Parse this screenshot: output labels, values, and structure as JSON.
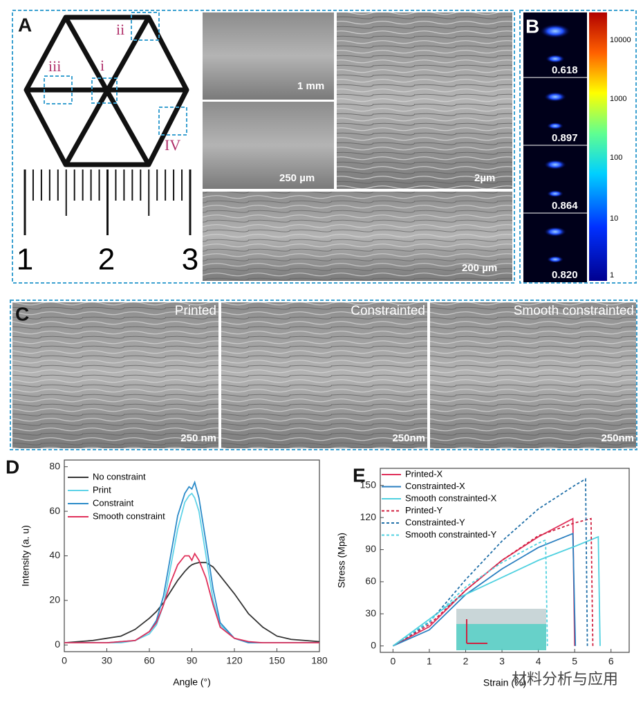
{
  "panel_a": {
    "label": "A",
    "regions": [
      "i",
      "ii",
      "iii",
      "IV"
    ],
    "ruler": [
      "1",
      "2",
      "3"
    ],
    "scale_bars": [
      "1 mm",
      "250 µm",
      "2µm",
      "200 µm"
    ]
  },
  "panel_b": {
    "label": "B",
    "orientation_values": [
      "0.618",
      "0.897",
      "0.864",
      "0.820"
    ],
    "colorbar_ticks": [
      "10000",
      "1000",
      "100",
      "10",
      "1"
    ]
  },
  "panel_c": {
    "label": "C",
    "images": [
      {
        "title": "Printed",
        "scale_bar": "250 nm"
      },
      {
        "title": "Constrainted",
        "scale_bar": "250nm"
      },
      {
        "title": "Smooth constrainted",
        "scale_bar": "250nm"
      }
    ]
  },
  "chart_data": [
    {
      "type": "line",
      "label": "D",
      "x_label": "Angle (°)",
      "y_label": "Intensity (a. u)",
      "legend": "upper left",
      "x": [
        0,
        10,
        20,
        30,
        40,
        50,
        60,
        65,
        70,
        75,
        80,
        85,
        88,
        90,
        92,
        95,
        100,
        105,
        110,
        120,
        130,
        140,
        150,
        160,
        170,
        180
      ],
      "series": [
        {
          "name": "No constraint",
          "color": "#333333",
          "values": [
            1,
            1.5,
            2,
            3,
            4,
            7,
            12,
            15,
            19,
            24,
            29,
            33,
            35,
            36,
            36.5,
            37,
            37,
            35,
            31,
            23,
            14,
            8,
            4,
            2.5,
            2,
            1.5
          ]
        },
        {
          "name": "Print",
          "color": "#5fd3e8",
          "values": [
            1,
            1,
            1,
            1,
            1,
            2,
            5,
            9,
            18,
            35,
            52,
            64,
            67,
            68,
            66,
            60,
            40,
            20,
            9,
            3,
            1,
            1,
            1,
            1,
            1,
            1
          ]
        },
        {
          "name": "Constraint",
          "color": "#2a8ac8",
          "values": [
            1,
            1,
            1,
            1,
            1.5,
            2,
            6,
            11,
            22,
            40,
            58,
            68,
            71,
            70,
            73,
            66,
            46,
            25,
            10,
            3,
            1,
            1,
            1,
            1,
            1,
            1
          ]
        },
        {
          "name": "Smooth constraint",
          "color": "#e0305a",
          "values": [
            1,
            1,
            1,
            1,
            1.5,
            2,
            6,
            10,
            18,
            28,
            36,
            40,
            40,
            38,
            41,
            38,
            30,
            18,
            8,
            3,
            1.5,
            1,
            1,
            1,
            1,
            1
          ]
        }
      ],
      "xlim": [
        0,
        180
      ],
      "ylim": [
        -3,
        83
      ],
      "xticks": [
        0,
        30,
        60,
        90,
        120,
        150,
        180
      ],
      "yticks": [
        0,
        20,
        40,
        60,
        80
      ]
    },
    {
      "type": "line",
      "label": "E",
      "x_label": "Strain (%)",
      "y_label": "Stress (Mpa)",
      "legend": "upper left",
      "series": [
        {
          "name": "Printed-X",
          "color": "#e0305a",
          "dashed": false,
          "x": [
            0,
            1,
            2,
            3,
            4,
            4.95,
            5.0
          ],
          "values": [
            0,
            18,
            52,
            80,
            102,
            119,
            0
          ]
        },
        {
          "name": "Constrainted-X",
          "color": "#2a7fc0",
          "dashed": false,
          "x": [
            0,
            1,
            2,
            3,
            4,
            4.95,
            5.02
          ],
          "values": [
            0,
            15,
            48,
            72,
            92,
            105,
            0
          ]
        },
        {
          "name": "Smooth constrainted-X",
          "color": "#4fd1e0",
          "dashed": false,
          "x": [
            0,
            1,
            1.8,
            3,
            4,
            5,
            5.65,
            5.7
          ],
          "values": [
            0,
            25,
            45,
            64,
            80,
            93,
            102,
            0
          ]
        },
        {
          "name": "Printed-Y",
          "color": "#d0203f",
          "dashed": true,
          "x": [
            0,
            1,
            2,
            3,
            4,
            5,
            5.45,
            5.5
          ],
          "values": [
            0,
            20,
            52,
            80,
            103,
            115,
            119,
            0
          ]
        },
        {
          "name": "Constrainted-Y",
          "color": "#1f6fa8",
          "dashed": true,
          "x": [
            0,
            1,
            2,
            3,
            4,
            5,
            5.3,
            5.35
          ],
          "values": [
            0,
            22,
            62,
            98,
            128,
            150,
            156,
            0
          ]
        },
        {
          "name": "Smooth constrainted-Y",
          "color": "#4fd1e0",
          "dashed": true,
          "x": [
            0,
            1,
            2,
            3,
            4,
            4.2,
            4.25
          ],
          "values": [
            0,
            23,
            55,
            78,
            96,
            99,
            0
          ]
        }
      ],
      "xlim": [
        -0.35,
        6.5
      ],
      "ylim": [
        -6,
        166
      ],
      "xticks": [
        0,
        1,
        2,
        3,
        4,
        5,
        6
      ],
      "yticks": [
        0,
        30,
        60,
        90,
        120,
        150
      ]
    }
  ],
  "watermark": "材料分析与应用"
}
